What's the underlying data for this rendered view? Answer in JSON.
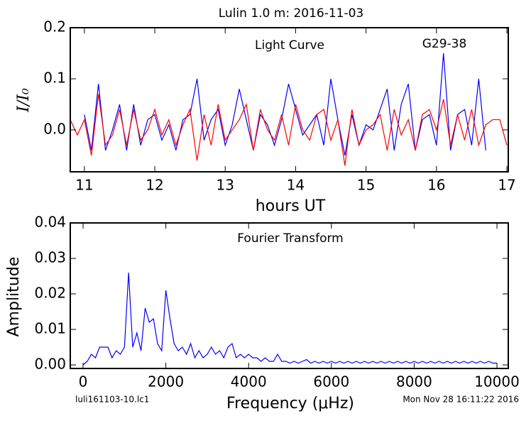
{
  "chart_data": [
    {
      "type": "line",
      "title": "Lulin 1.0 m:  2016-11-03",
      "label": "Light Curve",
      "annotation": "G29-38",
      "xlabel": "hours UT",
      "ylabel": "I/I₀",
      "x": [
        10.8,
        10.9,
        11.0,
        11.1,
        11.2,
        11.3,
        11.4,
        11.5,
        11.6,
        11.7,
        11.8,
        11.9,
        12.0,
        12.1,
        12.2,
        12.3,
        12.4,
        12.5,
        12.6,
        12.7,
        12.8,
        12.9,
        13.0,
        13.1,
        13.2,
        13.3,
        13.4,
        13.5,
        13.6,
        13.7,
        13.8,
        13.9,
        14.0,
        14.1,
        14.2,
        14.3,
        14.4,
        14.5,
        14.6,
        14.7,
        14.8,
        14.9,
        15.0,
        15.1,
        15.2,
        15.3,
        15.4,
        15.5,
        15.6,
        15.7,
        15.8,
        15.9,
        16.0,
        16.1,
        16.2,
        16.3,
        16.4,
        16.5,
        16.6,
        16.7,
        16.8,
        16.9,
        17.0
      ],
      "series": [
        {
          "color": "#0000ff",
          "values": [
            null,
            null,
            0.03,
            -0.04,
            0.09,
            -0.04,
            0.0,
            0.05,
            -0.04,
            0.05,
            -0.03,
            0.02,
            0.03,
            -0.02,
            0.01,
            -0.04,
            0.02,
            0.03,
            0.1,
            -0.02,
            0.02,
            0.04,
            -0.03,
            0.01,
            0.08,
            0.02,
            -0.04,
            0.03,
            0.01,
            -0.03,
            0.02,
            0.09,
            0.04,
            -0.01,
            0.01,
            0.03,
            -0.03,
            0.1,
            0.02,
            -0.05,
            0.03,
            -0.03,
            0.01,
            0.0,
            0.04,
            0.08,
            -0.04,
            0.05,
            0.09,
            -0.04,
            0.02,
            0.03,
            -0.03,
            0.15,
            -0.04,
            0.03,
            0.04,
            -0.03,
            0.1,
            -0.04,
            null,
            null,
            null
          ]
        },
        {
          "color": "#ff0000",
          "values": [
            0.02,
            -0.01,
            0.02,
            -0.05,
            0.07,
            -0.03,
            -0.01,
            0.04,
            -0.03,
            0.04,
            -0.02,
            0.0,
            0.04,
            -0.01,
            0.02,
            -0.03,
            0.01,
            0.04,
            -0.06,
            0.03,
            -0.03,
            0.05,
            -0.02,
            0.0,
            0.02,
            0.05,
            -0.04,
            0.04,
            0.0,
            -0.02,
            0.03,
            -0.03,
            0.05,
            0.0,
            -0.02,
            0.03,
            0.04,
            -0.02,
            0.02,
            -0.07,
            0.04,
            -0.03,
            0.0,
            0.01,
            0.03,
            -0.04,
            0.04,
            -0.01,
            0.02,
            -0.04,
            0.03,
            0.04,
            0.0,
            0.06,
            -0.03,
            0.03,
            -0.02,
            0.04,
            -0.03,
            0.01,
            0.02,
            0.02,
            -0.03
          ]
        }
      ],
      "xlim": [
        10.8,
        17.02
      ],
      "ylim": [
        -0.082,
        0.2
      ],
      "xticks": [
        11,
        12,
        13,
        14,
        15,
        16,
        17
      ],
      "yticks": [
        {
          "value": 0,
          "label": "0.0"
        },
        0.1,
        0.2
      ]
    },
    {
      "type": "line",
      "label": "Fourier Transform",
      "xlabel": "Frequency (μHz)",
      "ylabel": "Amplitude",
      "x": [
        0,
        100,
        200,
        300,
        400,
        500,
        600,
        700,
        800,
        900,
        1000,
        1100,
        1200,
        1300,
        1400,
        1500,
        1600,
        1700,
        1800,
        1900,
        2000,
        2100,
        2200,
        2300,
        2400,
        2500,
        2600,
        2700,
        2800,
        2900,
        3000,
        3100,
        3200,
        3300,
        3400,
        3500,
        3600,
        3700,
        3800,
        3900,
        4000,
        4100,
        4200,
        4300,
        4400,
        4500,
        4600,
        4700,
        4800,
        4900,
        5000,
        5100,
        5200,
        5300,
        5400,
        5500,
        5600,
        5700,
        5800,
        5900,
        6000,
        6100,
        6200,
        6300,
        6400,
        6500,
        6600,
        6700,
        6800,
        6900,
        7000,
        7100,
        7200,
        7300,
        7400,
        7500,
        7600,
        7700,
        7800,
        7900,
        8000,
        8100,
        8200,
        8300,
        8400,
        8500,
        8600,
        8700,
        8800,
        8900,
        9000,
        9100,
        9200,
        9300,
        9400,
        9500,
        9600,
        9700,
        9800,
        9900,
        10000
      ],
      "series": [
        {
          "color": "#0000ff",
          "values": [
            0.0,
            0.001,
            0.003,
            0.002,
            0.005,
            0.005,
            0.005,
            0.002,
            0.004,
            0.003,
            0.005,
            0.026,
            0.005,
            0.009,
            0.004,
            0.016,
            0.012,
            0.013,
            0.006,
            0.004,
            0.021,
            0.013,
            0.006,
            0.004,
            0.005,
            0.003,
            0.006,
            0.002,
            0.004,
            0.002,
            0.003,
            0.005,
            0.003,
            0.004,
            0.002,
            0.005,
            0.006,
            0.002,
            0.003,
            0.002,
            0.003,
            0.002,
            0.002,
            0.001,
            0.002,
            0.001,
            0.001,
            0.003,
            0.001,
            0.001,
            0.0005,
            0.001,
            0.0005,
            0.001,
            0.0015,
            0.0005,
            0.001,
            0.0005,
            0.001,
            0.0005,
            0.001,
            0.0005,
            0.001,
            0.0005,
            0.001,
            0.0005,
            0.001,
            0.0005,
            0.001,
            0.0005,
            0.001,
            0.0005,
            0.001,
            0.0005,
            0.001,
            0.0005,
            0.001,
            0.0005,
            0.001,
            0.0005,
            0.001,
            0.0005,
            0.001,
            0.0005,
            0.001,
            0.0005,
            0.001,
            0.0005,
            0.001,
            0.0005,
            0.001,
            0.0005,
            0.001,
            0.0005,
            0.001,
            0.0005,
            0.001,
            0.0005,
            0.001,
            0.0005,
            0.0005
          ]
        }
      ],
      "xlim": [
        -309,
        10274
      ],
      "ylim": [
        -0.001,
        0.04
      ],
      "xticks": [
        0,
        2000,
        4000,
        6000,
        8000,
        10000
      ],
      "yticks": [
        {
          "value": 0,
          "label": "0.00"
        },
        0.01,
        0.02,
        0.03,
        0.04
      ]
    }
  ],
  "footer": {
    "left": "luli161103-10.lc1",
    "right": "Mon Nov 28 16:11:22 2016"
  }
}
